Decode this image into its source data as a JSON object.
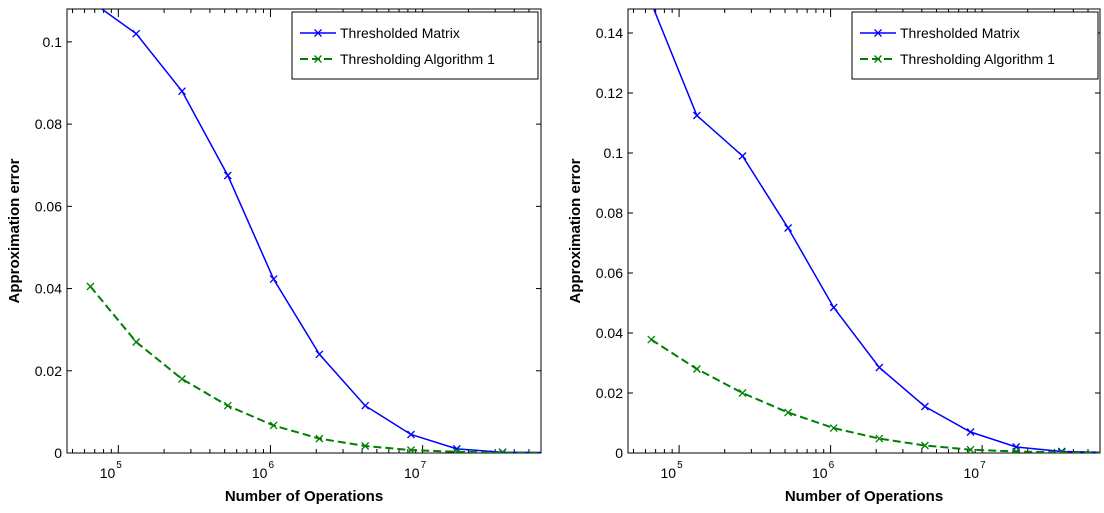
{
  "chart_data": [
    {
      "type": "line",
      "xlabel": "Number of Operations",
      "ylabel": "Approximation error",
      "xscale": "log",
      "xlim": [
        46000,
        60000000
      ],
      "ylim": [
        0,
        0.108
      ],
      "yticks": [
        0,
        0.02,
        0.04,
        0.06,
        0.08,
        0.1
      ],
      "ytick_labels": [
        "0",
        "0.02",
        "0.04",
        "0.06",
        "0.08",
        "0.1"
      ],
      "xtick_labels": [
        {
          "base": "10",
          "exp": "5"
        },
        {
          "base": "10",
          "exp": "6"
        },
        {
          "base": "10",
          "exp": "7"
        }
      ],
      "legend_position": "top-right",
      "series": [
        {
          "name": "Thresholded Matrix",
          "color": "#0000ff",
          "line_style": "solid",
          "marker": "x",
          "x": [
            65536,
            131072,
            262144,
            524288,
            1048576,
            2097152,
            4194304,
            8388608,
            16777216,
            33554432,
            67108864
          ],
          "y": [
            0.11,
            0.102,
            0.088,
            0.0675,
            0.0423,
            0.024,
            0.0115,
            0.0045,
            0.001,
            0.0002,
            0.0001
          ]
        },
        {
          "name": "Thresholding Algorithm 1",
          "color": "#008000",
          "line_style": "dashed",
          "marker": "x",
          "x": [
            65536,
            131072,
            262144,
            524288,
            1048576,
            2097152,
            4194304,
            8388608,
            16777216,
            33554432,
            67108864
          ],
          "y": [
            0.0405,
            0.027,
            0.018,
            0.0115,
            0.0067,
            0.0035,
            0.0017,
            0.0007,
            0.0003,
            0.0001,
            0.0
          ]
        }
      ]
    },
    {
      "type": "line",
      "xlabel": "Number of Operations",
      "ylabel": "Approximation error",
      "xscale": "log",
      "xlim": [
        46000,
        60000000
      ],
      "ylim": [
        0,
        0.148
      ],
      "yticks": [
        0,
        0.02,
        0.04,
        0.06,
        0.08,
        0.1,
        0.12,
        0.14
      ],
      "ytick_labels": [
        "0",
        "0.02",
        "0.04",
        "0.06",
        "0.08",
        "0.1",
        "0.12",
        "0.14"
      ],
      "xtick_labels": [
        {
          "base": "10",
          "exp": "5"
        },
        {
          "base": "10",
          "exp": "6"
        },
        {
          "base": "10",
          "exp": "7"
        }
      ],
      "legend_position": "top-right",
      "series": [
        {
          "name": "Thresholded Matrix",
          "color": "#0000ff",
          "line_style": "solid",
          "marker": "x",
          "x": [
            65536,
            131072,
            262144,
            524288,
            1048576,
            2097152,
            4194304,
            8388608,
            16777216,
            33554432,
            67108864
          ],
          "y": [
            0.15,
            0.1125,
            0.099,
            0.075,
            0.0485,
            0.0285,
            0.0155,
            0.007,
            0.002,
            0.0005,
            0.0002
          ]
        },
        {
          "name": "Thresholding Algorithm 1",
          "color": "#008000",
          "line_style": "dashed",
          "marker": "x",
          "x": [
            65536,
            131072,
            262144,
            524288,
            1048576,
            2097152,
            4194304,
            8388608,
            16777216,
            33554432,
            67108864
          ],
          "y": [
            0.0378,
            0.028,
            0.02,
            0.0135,
            0.0083,
            0.0048,
            0.0025,
            0.0011,
            0.0005,
            0.0002,
            0.0001
          ]
        }
      ]
    }
  ]
}
